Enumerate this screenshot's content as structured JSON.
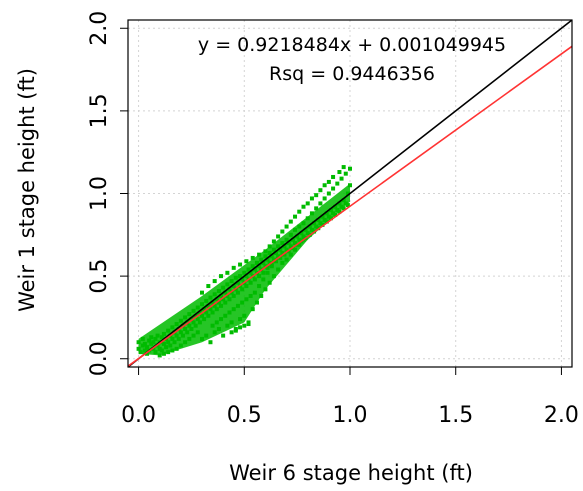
{
  "chart_data": {
    "type": "scatter",
    "xlabel": "Weir 6 stage height (ft)",
    "ylabel": "Weir 1 stage height (ft)",
    "xlim": [
      -0.05,
      2.05
    ],
    "ylim": [
      -0.05,
      2.05
    ],
    "x_ticks": [
      "0.0",
      "0.5",
      "1.0",
      "1.5",
      "2.0"
    ],
    "y_ticks": [
      "0.0",
      "0.5",
      "1.0",
      "1.5",
      "2.0"
    ],
    "grid": true,
    "annotations": {
      "equation": "y = 0.9218484x + 0.001049945",
      "rsq": "Rsq = 0.9446356"
    },
    "lines": [
      {
        "kind": "one-to-one",
        "slope": 1,
        "intercept": 0,
        "color": "#000000"
      },
      {
        "kind": "regression",
        "slope": 0.9218484,
        "intercept": 0.001049945,
        "color": "#ff3333"
      }
    ],
    "points_color": "#00bb00",
    "points": [
      [
        0.0,
        0.06
      ],
      [
        0.0,
        0.1
      ],
      [
        0.01,
        0.04
      ],
      [
        0.02,
        0.08
      ],
      [
        0.02,
        0.12
      ],
      [
        0.03,
        0.05
      ],
      [
        0.03,
        0.09
      ],
      [
        0.04,
        0.03
      ],
      [
        0.04,
        0.07
      ],
      [
        0.05,
        0.11
      ],
      [
        0.05,
        0.05
      ],
      [
        0.06,
        0.09
      ],
      [
        0.06,
        0.13
      ],
      [
        0.07,
        0.06
      ],
      [
        0.07,
        0.1
      ],
      [
        0.08,
        0.04
      ],
      [
        0.08,
        0.12
      ],
      [
        0.09,
        0.08
      ],
      [
        0.09,
        0.14
      ],
      [
        0.1,
        0.06
      ],
      [
        0.1,
        0.1
      ],
      [
        0.11,
        0.13
      ],
      [
        0.11,
        0.05
      ],
      [
        0.12,
        0.09
      ],
      [
        0.12,
        0.15
      ],
      [
        0.13,
        0.07
      ],
      [
        0.13,
        0.12
      ],
      [
        0.14,
        0.1
      ],
      [
        0.14,
        0.17
      ],
      [
        0.15,
        0.08
      ],
      [
        0.15,
        0.14
      ],
      [
        0.16,
        0.12
      ],
      [
        0.16,
        0.19
      ],
      [
        0.17,
        0.1
      ],
      [
        0.17,
        0.16
      ],
      [
        0.18,
        0.14
      ],
      [
        0.18,
        0.21
      ],
      [
        0.19,
        0.12
      ],
      [
        0.19,
        0.18
      ],
      [
        0.2,
        0.16
      ],
      [
        0.2,
        0.23
      ],
      [
        0.21,
        0.14
      ],
      [
        0.21,
        0.2
      ],
      [
        0.22,
        0.18
      ],
      [
        0.22,
        0.25
      ],
      [
        0.23,
        0.16
      ],
      [
        0.23,
        0.22
      ],
      [
        0.24,
        0.2
      ],
      [
        0.24,
        0.27
      ],
      [
        0.25,
        0.18
      ],
      [
        0.25,
        0.24
      ],
      [
        0.26,
        0.22
      ],
      [
        0.26,
        0.29
      ],
      [
        0.27,
        0.2
      ],
      [
        0.27,
        0.26
      ],
      [
        0.28,
        0.24
      ],
      [
        0.28,
        0.31
      ],
      [
        0.29,
        0.22
      ],
      [
        0.29,
        0.28
      ],
      [
        0.3,
        0.26
      ],
      [
        0.3,
        0.33
      ],
      [
        0.31,
        0.24
      ],
      [
        0.31,
        0.3
      ],
      [
        0.32,
        0.28
      ],
      [
        0.32,
        0.35
      ],
      [
        0.33,
        0.26
      ],
      [
        0.33,
        0.32
      ],
      [
        0.34,
        0.3
      ],
      [
        0.34,
        0.37
      ],
      [
        0.35,
        0.28
      ],
      [
        0.35,
        0.34
      ],
      [
        0.36,
        0.32
      ],
      [
        0.36,
        0.39
      ],
      [
        0.37,
        0.3
      ],
      [
        0.37,
        0.36
      ],
      [
        0.38,
        0.34
      ],
      [
        0.38,
        0.41
      ],
      [
        0.39,
        0.32
      ],
      [
        0.39,
        0.38
      ],
      [
        0.4,
        0.36
      ],
      [
        0.4,
        0.43
      ],
      [
        0.41,
        0.34
      ],
      [
        0.41,
        0.4
      ],
      [
        0.42,
        0.38
      ],
      [
        0.42,
        0.45
      ],
      [
        0.43,
        0.36
      ],
      [
        0.43,
        0.42
      ],
      [
        0.44,
        0.4
      ],
      [
        0.44,
        0.47
      ],
      [
        0.45,
        0.38
      ],
      [
        0.45,
        0.44
      ],
      [
        0.46,
        0.42
      ],
      [
        0.46,
        0.49
      ],
      [
        0.47,
        0.4
      ],
      [
        0.47,
        0.46
      ],
      [
        0.48,
        0.44
      ],
      [
        0.48,
        0.5
      ],
      [
        0.49,
        0.42
      ],
      [
        0.49,
        0.48
      ],
      [
        0.5,
        0.46
      ],
      [
        0.5,
        0.52
      ],
      [
        0.51,
        0.44
      ],
      [
        0.51,
        0.5
      ],
      [
        0.52,
        0.48
      ],
      [
        0.52,
        0.54
      ],
      [
        0.53,
        0.46
      ],
      [
        0.53,
        0.52
      ],
      [
        0.54,
        0.5
      ],
      [
        0.54,
        0.56
      ],
      [
        0.55,
        0.48
      ],
      [
        0.55,
        0.54
      ],
      [
        0.56,
        0.52
      ],
      [
        0.56,
        0.58
      ],
      [
        0.57,
        0.5
      ],
      [
        0.57,
        0.56
      ],
      [
        0.58,
        0.54
      ],
      [
        0.58,
        0.6
      ],
      [
        0.59,
        0.52
      ],
      [
        0.59,
        0.58
      ],
      [
        0.6,
        0.56
      ],
      [
        0.6,
        0.62
      ],
      [
        0.61,
        0.55
      ],
      [
        0.61,
        0.6
      ],
      [
        0.62,
        0.58
      ],
      [
        0.62,
        0.64
      ],
      [
        0.63,
        0.57
      ],
      [
        0.63,
        0.62
      ],
      [
        0.64,
        0.6
      ],
      [
        0.64,
        0.66
      ],
      [
        0.65,
        0.59
      ],
      [
        0.65,
        0.64
      ],
      [
        0.66,
        0.62
      ],
      [
        0.66,
        0.68
      ],
      [
        0.67,
        0.61
      ],
      [
        0.67,
        0.66
      ],
      [
        0.68,
        0.64
      ],
      [
        0.68,
        0.7
      ],
      [
        0.69,
        0.63
      ],
      [
        0.69,
        0.68
      ],
      [
        0.7,
        0.66
      ],
      [
        0.7,
        0.72
      ],
      [
        0.71,
        0.65
      ],
      [
        0.71,
        0.7
      ],
      [
        0.72,
        0.68
      ],
      [
        0.72,
        0.75
      ],
      [
        0.73,
        0.67
      ],
      [
        0.73,
        0.72
      ],
      [
        0.74,
        0.7
      ],
      [
        0.74,
        0.78
      ],
      [
        0.75,
        0.69
      ],
      [
        0.75,
        0.74
      ],
      [
        0.76,
        0.72
      ],
      [
        0.76,
        0.8
      ],
      [
        0.77,
        0.71
      ],
      [
        0.77,
        0.76
      ],
      [
        0.78,
        0.74
      ],
      [
        0.78,
        0.82
      ],
      [
        0.79,
        0.73
      ],
      [
        0.79,
        0.78
      ],
      [
        0.8,
        0.76
      ],
      [
        0.8,
        0.85
      ],
      [
        0.81,
        0.75
      ],
      [
        0.81,
        0.8
      ],
      [
        0.82,
        0.78
      ],
      [
        0.82,
        0.88
      ],
      [
        0.83,
        0.77
      ],
      [
        0.83,
        0.82
      ],
      [
        0.84,
        0.8
      ],
      [
        0.84,
        0.91
      ],
      [
        0.85,
        0.79
      ],
      [
        0.85,
        0.84
      ],
      [
        0.86,
        0.82
      ],
      [
        0.86,
        0.94
      ],
      [
        0.87,
        0.81
      ],
      [
        0.87,
        0.86
      ],
      [
        0.88,
        0.84
      ],
      [
        0.88,
        0.97
      ],
      [
        0.89,
        0.83
      ],
      [
        0.89,
        0.88
      ],
      [
        0.9,
        0.86
      ],
      [
        0.9,
        1.0
      ],
      [
        0.91,
        0.85
      ],
      [
        0.91,
        0.9
      ],
      [
        0.92,
        0.88
      ],
      [
        0.92,
        1.03
      ],
      [
        0.93,
        0.87
      ],
      [
        0.93,
        0.92
      ],
      [
        0.94,
        0.9
      ],
      [
        0.94,
        1.06
      ],
      [
        0.95,
        0.89
      ],
      [
        0.95,
        0.94
      ],
      [
        0.96,
        0.92
      ],
      [
        0.96,
        1.09
      ],
      [
        0.97,
        0.91
      ],
      [
        0.97,
        0.96
      ],
      [
        0.98,
        0.94
      ],
      [
        0.98,
        1.12
      ],
      [
        0.99,
        0.93
      ],
      [
        0.99,
        1.0
      ],
      [
        1.0,
        1.05
      ],
      [
        1.0,
        1.15
      ],
      [
        0.97,
        1.16
      ],
      [
        0.95,
        1.13
      ],
      [
        0.92,
        1.1
      ],
      [
        0.9,
        1.07
      ],
      [
        0.88,
        1.05
      ],
      [
        0.86,
        1.02
      ],
      [
        0.84,
        0.99
      ],
      [
        0.82,
        0.97
      ],
      [
        0.8,
        0.94
      ],
      [
        0.78,
        0.92
      ],
      [
        0.76,
        0.89
      ],
      [
        0.74,
        0.86
      ],
      [
        0.72,
        0.83
      ],
      [
        0.7,
        0.8
      ],
      [
        0.68,
        0.77
      ],
      [
        0.66,
        0.74
      ],
      [
        0.64,
        0.71
      ],
      [
        0.62,
        0.68
      ],
      [
        0.6,
        0.65
      ],
      [
        0.3,
        0.12
      ],
      [
        0.32,
        0.14
      ],
      [
        0.34,
        0.1
      ],
      [
        0.36,
        0.16
      ],
      [
        0.38,
        0.18
      ],
      [
        0.4,
        0.14
      ],
      [
        0.42,
        0.2
      ],
      [
        0.44,
        0.22
      ],
      [
        0.46,
        0.18
      ],
      [
        0.48,
        0.24
      ],
      [
        0.5,
        0.26
      ],
      [
        0.52,
        0.22
      ],
      [
        0.54,
        0.3
      ],
      [
        0.56,
        0.34
      ],
      [
        0.58,
        0.38
      ],
      [
        0.6,
        0.42
      ],
      [
        0.62,
        0.46
      ],
      [
        0.64,
        0.5
      ],
      [
        0.66,
        0.54
      ],
      [
        0.68,
        0.58
      ],
      [
        0.7,
        0.6
      ],
      [
        0.72,
        0.63
      ],
      [
        0.74,
        0.66
      ],
      [
        0.76,
        0.69
      ],
      [
        0.78,
        0.72
      ],
      [
        0.35,
        0.2
      ],
      [
        0.37,
        0.22
      ],
      [
        0.39,
        0.24
      ],
      [
        0.41,
        0.26
      ],
      [
        0.43,
        0.28
      ],
      [
        0.45,
        0.3
      ],
      [
        0.47,
        0.32
      ],
      [
        0.49,
        0.34
      ],
      [
        0.51,
        0.36
      ],
      [
        0.53,
        0.38
      ],
      [
        0.55,
        0.4
      ],
      [
        0.57,
        0.44
      ],
      [
        0.59,
        0.48
      ],
      [
        0.61,
        0.52
      ],
      [
        0.63,
        0.56
      ],
      [
        0.2,
        0.08
      ],
      [
        0.22,
        0.1
      ],
      [
        0.24,
        0.12
      ],
      [
        0.26,
        0.14
      ],
      [
        0.28,
        0.16
      ],
      [
        0.18,
        0.06
      ],
      [
        0.16,
        0.05
      ],
      [
        0.14,
        0.04
      ],
      [
        0.12,
        0.03
      ],
      [
        0.1,
        0.02
      ],
      [
        0.3,
        0.4
      ],
      [
        0.33,
        0.44
      ],
      [
        0.36,
        0.47
      ],
      [
        0.39,
        0.5
      ],
      [
        0.42,
        0.52
      ],
      [
        0.45,
        0.55
      ],
      [
        0.48,
        0.57
      ],
      [
        0.51,
        0.59
      ],
      [
        0.54,
        0.61
      ],
      [
        0.57,
        0.63
      ],
      [
        0.5,
        0.2
      ],
      [
        0.52,
        0.21
      ],
      [
        0.48,
        0.19
      ],
      [
        0.46,
        0.17
      ],
      [
        0.44,
        0.16
      ]
    ]
  }
}
